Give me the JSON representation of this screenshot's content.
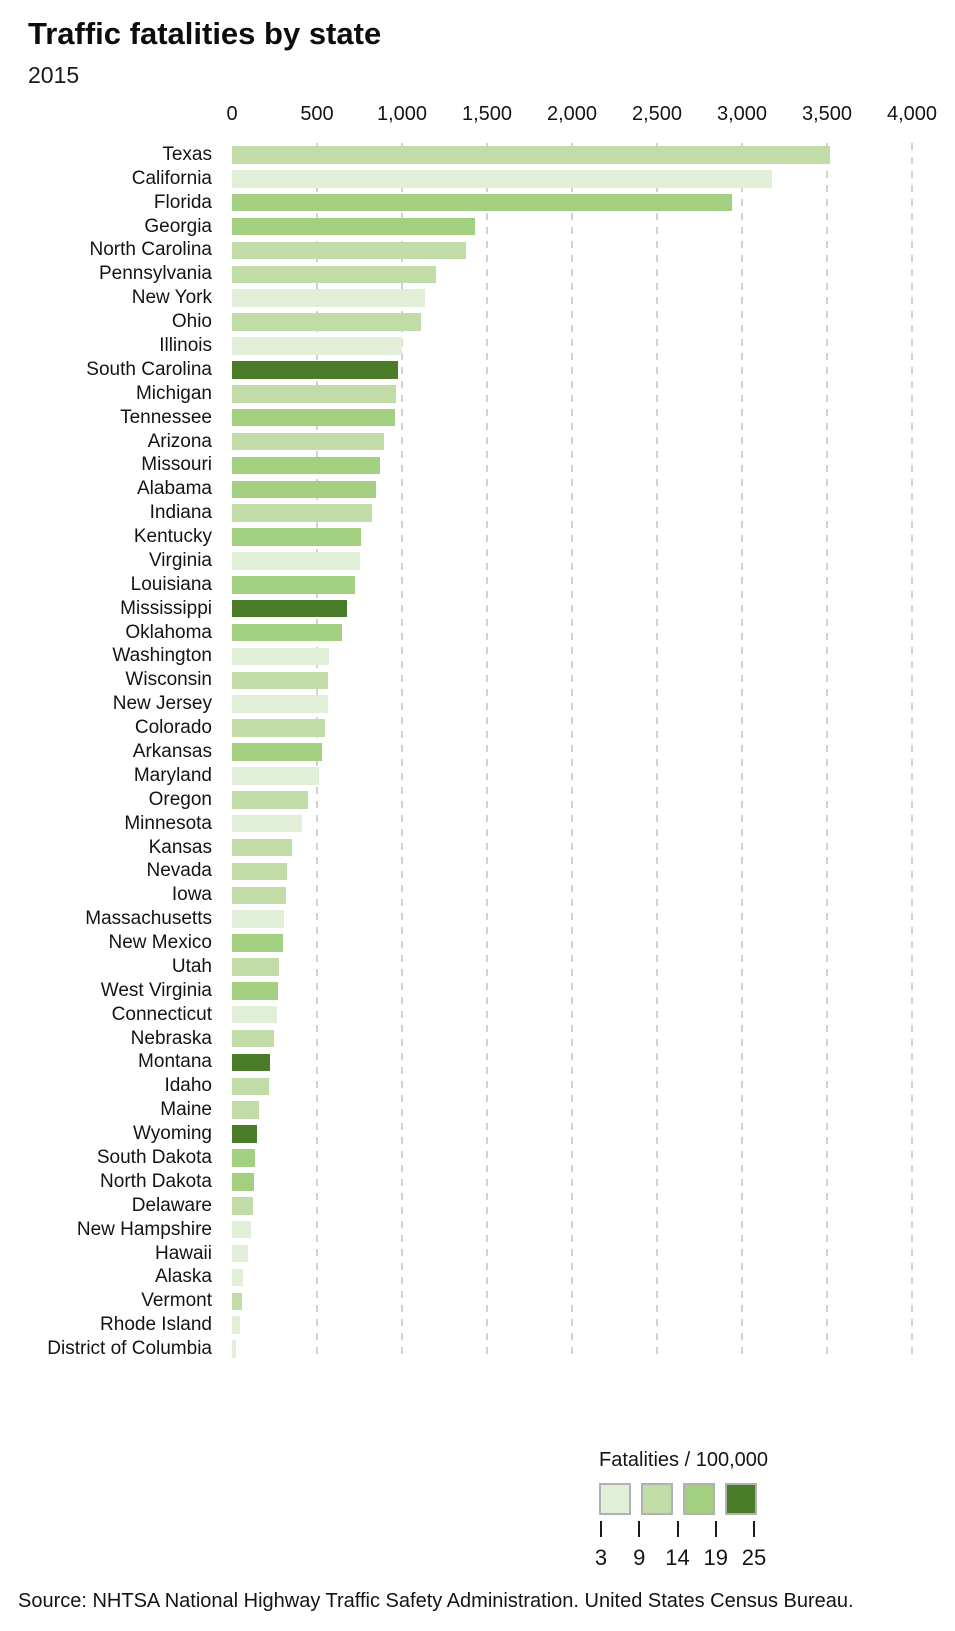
{
  "header": {
    "title": "Traffic fatalities by state",
    "subtitle": "2015"
  },
  "source_note": "Source: NHTSA National Highway Traffic Safety Administration. United States Census Bureau.",
  "colors": {
    "bin1_lightest_green": "#e2efd8",
    "bin2_light_green": "#c2dca8",
    "bin3_medium_green": "#a3cf81",
    "bin4_dark_green": "#4b7c29",
    "gridline": "#d2d2d2",
    "text": "#141414",
    "legend_swatch_border": "#b1b1b1"
  },
  "chart_data": {
    "type": "bar",
    "orientation": "horizontal",
    "title": "Traffic fatalities by state",
    "subtitle": "2015",
    "xlabel": "",
    "ylabel": "",
    "xlim": [
      0,
      4000
    ],
    "x_ticks": [
      0,
      500,
      1000,
      1500,
      2000,
      2500,
      3000,
      3500,
      4000
    ],
    "x_tick_labels": [
      "0",
      "500",
      "1,000",
      "1,500",
      "2,000",
      "2,500",
      "3,000",
      "3,500",
      "4,000"
    ],
    "grid": "dashed-vertical-gridlines",
    "legend": {
      "title": "Fatalities / 100,000",
      "position": "bottom-right",
      "bin_colors": [
        "#e2efd8",
        "#c2dca8",
        "#a3cf81",
        "#4b7c29"
      ],
      "tick_labels": [
        "3",
        "9",
        "14",
        "19",
        "25"
      ]
    },
    "series_note": "bar length = traffic fatalities; color bin = fatalities per 100,000 population (1 = lightest, 4 = darkest)",
    "states": [
      {
        "state": "Texas",
        "fatalities": 3516,
        "bin": 2
      },
      {
        "state": "California",
        "fatalities": 3176,
        "bin": 1
      },
      {
        "state": "Florida",
        "fatalities": 2939,
        "bin": 3
      },
      {
        "state": "Georgia",
        "fatalities": 1430,
        "bin": 3
      },
      {
        "state": "North Carolina",
        "fatalities": 1379,
        "bin": 2
      },
      {
        "state": "Pennsylvania",
        "fatalities": 1200,
        "bin": 2
      },
      {
        "state": "New York",
        "fatalities": 1136,
        "bin": 1
      },
      {
        "state": "Ohio",
        "fatalities": 1110,
        "bin": 2
      },
      {
        "state": "Illinois",
        "fatalities": 998,
        "bin": 1
      },
      {
        "state": "South Carolina",
        "fatalities": 979,
        "bin": 4
      },
      {
        "state": "Michigan",
        "fatalities": 963,
        "bin": 2
      },
      {
        "state": "Tennessee",
        "fatalities": 958,
        "bin": 3
      },
      {
        "state": "Arizona",
        "fatalities": 893,
        "bin": 2
      },
      {
        "state": "Missouri",
        "fatalities": 869,
        "bin": 3
      },
      {
        "state": "Alabama",
        "fatalities": 849,
        "bin": 3
      },
      {
        "state": "Indiana",
        "fatalities": 821,
        "bin": 2
      },
      {
        "state": "Kentucky",
        "fatalities": 761,
        "bin": 3
      },
      {
        "state": "Virginia",
        "fatalities": 753,
        "bin": 1
      },
      {
        "state": "Louisiana",
        "fatalities": 726,
        "bin": 3
      },
      {
        "state": "Mississippi",
        "fatalities": 677,
        "bin": 4
      },
      {
        "state": "Oklahoma",
        "fatalities": 645,
        "bin": 3
      },
      {
        "state": "Washington",
        "fatalities": 568,
        "bin": 1
      },
      {
        "state": "Wisconsin",
        "fatalities": 566,
        "bin": 2
      },
      {
        "state": "New Jersey",
        "fatalities": 562,
        "bin": 1
      },
      {
        "state": "Colorado",
        "fatalities": 546,
        "bin": 2
      },
      {
        "state": "Arkansas",
        "fatalities": 531,
        "bin": 3
      },
      {
        "state": "Maryland",
        "fatalities": 513,
        "bin": 1
      },
      {
        "state": "Oregon",
        "fatalities": 447,
        "bin": 2
      },
      {
        "state": "Minnesota",
        "fatalities": 411,
        "bin": 1
      },
      {
        "state": "Kansas",
        "fatalities": 355,
        "bin": 2
      },
      {
        "state": "Nevada",
        "fatalities": 326,
        "bin": 2
      },
      {
        "state": "Iowa",
        "fatalities": 320,
        "bin": 2
      },
      {
        "state": "Massachusetts",
        "fatalities": 306,
        "bin": 1
      },
      {
        "state": "New Mexico",
        "fatalities": 298,
        "bin": 3
      },
      {
        "state": "Utah",
        "fatalities": 276,
        "bin": 2
      },
      {
        "state": "West Virginia",
        "fatalities": 268,
        "bin": 3
      },
      {
        "state": "Connecticut",
        "fatalities": 266,
        "bin": 1
      },
      {
        "state": "Nebraska",
        "fatalities": 246,
        "bin": 2
      },
      {
        "state": "Montana",
        "fatalities": 224,
        "bin": 4
      },
      {
        "state": "Idaho",
        "fatalities": 216,
        "bin": 2
      },
      {
        "state": "Maine",
        "fatalities": 156,
        "bin": 2
      },
      {
        "state": "Wyoming",
        "fatalities": 145,
        "bin": 4
      },
      {
        "state": "South Dakota",
        "fatalities": 133,
        "bin": 3
      },
      {
        "state": "North Dakota",
        "fatalities": 131,
        "bin": 3
      },
      {
        "state": "Delaware",
        "fatalities": 126,
        "bin": 2
      },
      {
        "state": "New Hampshire",
        "fatalities": 114,
        "bin": 1
      },
      {
        "state": "Hawaii",
        "fatalities": 93,
        "bin": 1
      },
      {
        "state": "Alaska",
        "fatalities": 65,
        "bin": 1
      },
      {
        "state": "Vermont",
        "fatalities": 57,
        "bin": 2
      },
      {
        "state": "Rhode Island",
        "fatalities": 45,
        "bin": 1
      },
      {
        "state": "District of Columbia",
        "fatalities": 23,
        "bin": 1
      }
    ]
  }
}
